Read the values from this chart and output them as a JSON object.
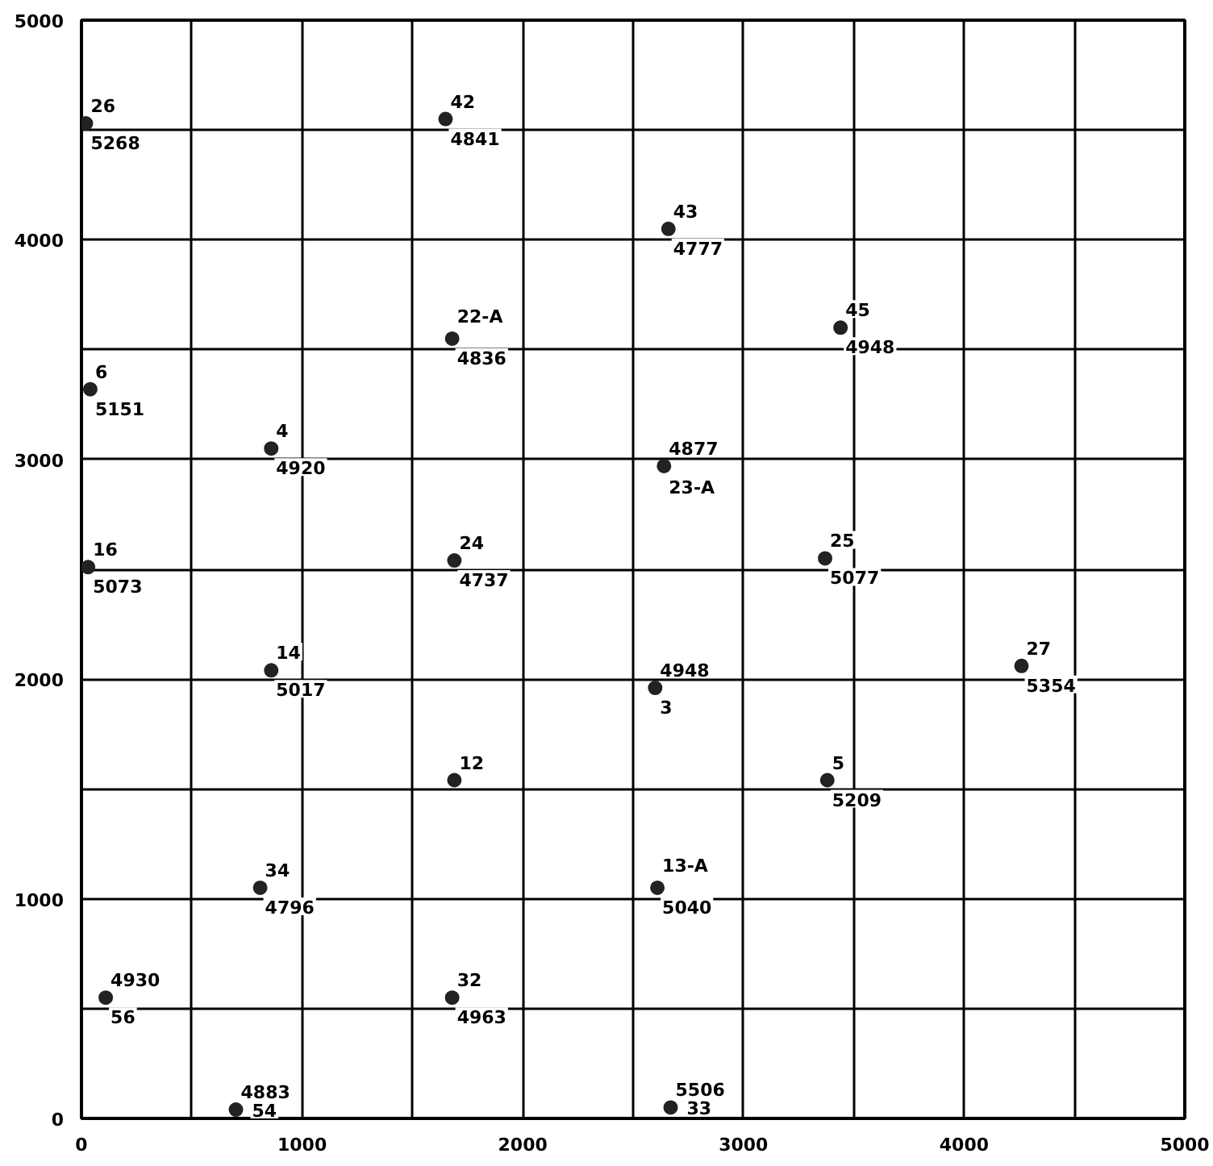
{
  "chart_data": {
    "type": "scatter",
    "marker": "circle",
    "grid": true,
    "x": [
      20,
      1650,
      2660,
      3440,
      1680,
      40,
      860,
      2640,
      30,
      1690,
      3370,
      860,
      2600,
      4260,
      1690,
      3380,
      810,
      2610,
      110,
      1680,
      700,
      2670
    ],
    "series": [
      {
        "color": "#222222",
        "values": [
          4530,
          4550,
          4050,
          3600,
          3550,
          3320,
          3050,
          2970,
          2510,
          2540,
          2550,
          2040,
          1960,
          2060,
          1540,
          1540,
          1050,
          1050,
          550,
          550,
          40,
          50
        ]
      }
    ],
    "xlim": [
      0,
      5000
    ],
    "ylim": [
      0,
      5000
    ],
    "xticks": [
      0,
      {
        "value": 500,
        "label": null
      },
      1000,
      {
        "value": 1500,
        "label": null
      },
      2000,
      {
        "value": 2500,
        "label": null
      },
      3000,
      {
        "value": 3500,
        "label": null
      },
      4000,
      {
        "value": 4500,
        "label": null
      },
      5000
    ],
    "yticks": [
      0,
      {
        "value": 500,
        "label": null
      },
      1000,
      {
        "value": 1500,
        "label": null
      },
      2000,
      {
        "value": 2500,
        "label": null
      },
      3000,
      {
        "value": 3500,
        "label": null
      },
      4000,
      {
        "value": 4500,
        "label": null
      },
      5000
    ],
    "annotations": [
      {
        "text": "26",
        "x": 20,
        "y": 4530
      },
      {
        "text": "5268",
        "x": 20,
        "y": 4530
      },
      {
        "text": "42",
        "x": 1650,
        "y": 4550
      },
      {
        "text": "4841",
        "x": 1650,
        "y": 4550
      },
      {
        "text": "43",
        "x": 2660,
        "y": 4050
      },
      {
        "text": "4777",
        "x": 2660,
        "y": 4050
      },
      {
        "text": "45",
        "x": 3440,
        "y": 3600
      },
      {
        "text": "4948",
        "x": 3440,
        "y": 3600
      },
      {
        "text": "22-A",
        "x": 1680,
        "y": 3550
      },
      {
        "text": "4836",
        "x": 1680,
        "y": 3550
      },
      {
        "text": "6",
        "x": 40,
        "y": 3320
      },
      {
        "text": "5151",
        "x": 40,
        "y": 3320
      },
      {
        "text": "4",
        "x": 860,
        "y": 3050
      },
      {
        "text": "4920",
        "x": 860,
        "y": 3050
      },
      {
        "text": "4877",
        "x": 2640,
        "y": 2970
      },
      {
        "text": "23-A",
        "x": 2640,
        "y": 2970
      },
      {
        "text": "16",
        "x": 30,
        "y": 2510
      },
      {
        "text": "5073",
        "x": 30,
        "y": 2510
      },
      {
        "text": "24",
        "x": 1690,
        "y": 2540
      },
      {
        "text": "4737",
        "x": 1690,
        "y": 2540
      },
      {
        "text": "25",
        "x": 3370,
        "y": 2550
      },
      {
        "text": "5077",
        "x": 3370,
        "y": 2550
      },
      {
        "text": "14",
        "x": 860,
        "y": 2040
      },
      {
        "text": "5017",
        "x": 860,
        "y": 2040
      },
      {
        "text": "4948",
        "x": 2600,
        "y": 1960
      },
      {
        "text": "3",
        "x": 2600,
        "y": 1960
      },
      {
        "text": "27",
        "x": 4260,
        "y": 2060
      },
      {
        "text": "5354",
        "x": 4260,
        "y": 2060
      },
      {
        "text": "12",
        "x": 1690,
        "y": 1540
      },
      {
        "text": "5",
        "x": 3380,
        "y": 1540
      },
      {
        "text": "5209",
        "x": 3380,
        "y": 1540
      },
      {
        "text": "34",
        "x": 810,
        "y": 1050
      },
      {
        "text": "4796",
        "x": 810,
        "y": 1050
      },
      {
        "text": "13-A",
        "x": 2610,
        "y": 1050
      },
      {
        "text": "5040",
        "x": 2610,
        "y": 1050
      },
      {
        "text": "4930",
        "x": 110,
        "y": 550
      },
      {
        "text": "56",
        "x": 110,
        "y": 550
      },
      {
        "text": "32",
        "x": 1680,
        "y": 550
      },
      {
        "text": "4963",
        "x": 1680,
        "y": 550
      },
      {
        "text": "4883",
        "x": 700,
        "y": 40
      },
      {
        "text": "54",
        "x": 700,
        "y": 40
      },
      {
        "text": "5506",
        "x": 2670,
        "y": 50
      },
      {
        "text": "33",
        "x": 2670,
        "y": 50
      }
    ]
  }
}
